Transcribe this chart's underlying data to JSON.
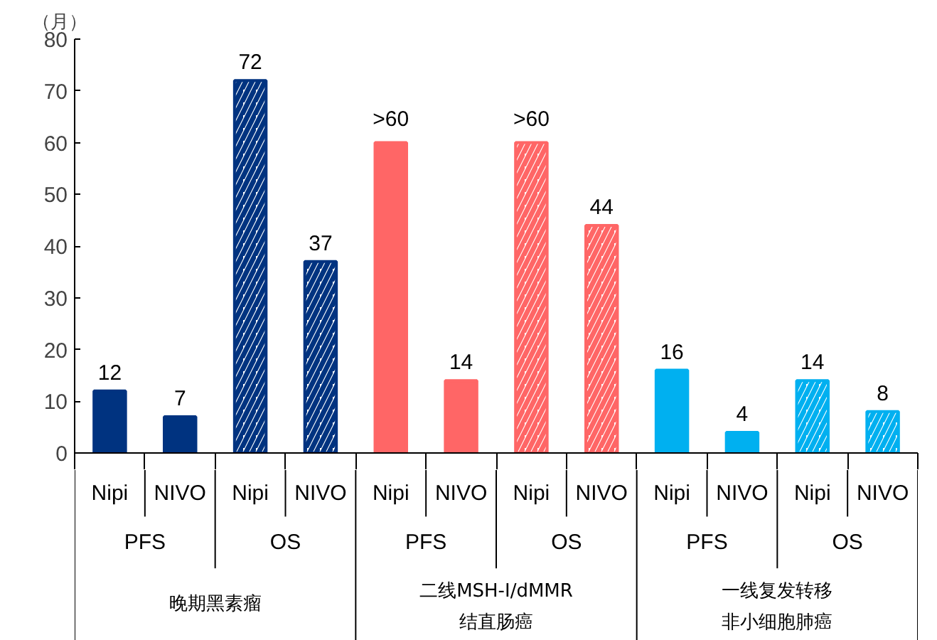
{
  "chart_data": {
    "type": "bar",
    "ylabel": "（月）",
    "categories": [
      "Nipi",
      "NIVO",
      "Nipi",
      "NIVO",
      "Nipi",
      "NIVO",
      "Nipi",
      "NIVO",
      "Nipi",
      "NIVO",
      "Nipi",
      "NIVO"
    ],
    "series": [
      {
        "values": [
          12,
          7,
          null,
          null,
          60,
          14,
          null,
          null,
          16,
          4,
          null,
          null
        ],
        "colors": [
          "#003380",
          "#003380",
          null,
          null,
          "#ff6666",
          "#ff6666",
          null,
          null,
          "#00b0f0",
          "#00b0f0",
          null,
          null
        ]
      },
      {
        "values": [
          null,
          null,
          72,
          37,
          null,
          null,
          60,
          44,
          null,
          null,
          14,
          8
        ],
        "colors": [
          null,
          null,
          "#003380",
          "#003380",
          null,
          null,
          "#ff6666",
          "#ff6666",
          null,
          null,
          "#00b0f0",
          "#00b0f0"
        ]
      }
    ],
    "value_labels": [
      "12",
      "7",
      "72",
      "37",
      ">60",
      "14",
      ">60",
      "44",
      "16",
      "4",
      "14",
      "8"
    ],
    "ylim": [
      0,
      80
    ],
    "yticks": [
      0,
      10,
      20,
      30,
      40,
      50,
      60,
      70,
      80
    ],
    "grid": false,
    "annotations": [
      "PFS",
      "OS",
      "PFS",
      "OS",
      "PFS",
      "OS",
      "晚期黑素瘤",
      "二线MSH-I/dMMR",
      "结直肠癌",
      "一线复发转移",
      "非小细胞肺癌"
    ]
  }
}
